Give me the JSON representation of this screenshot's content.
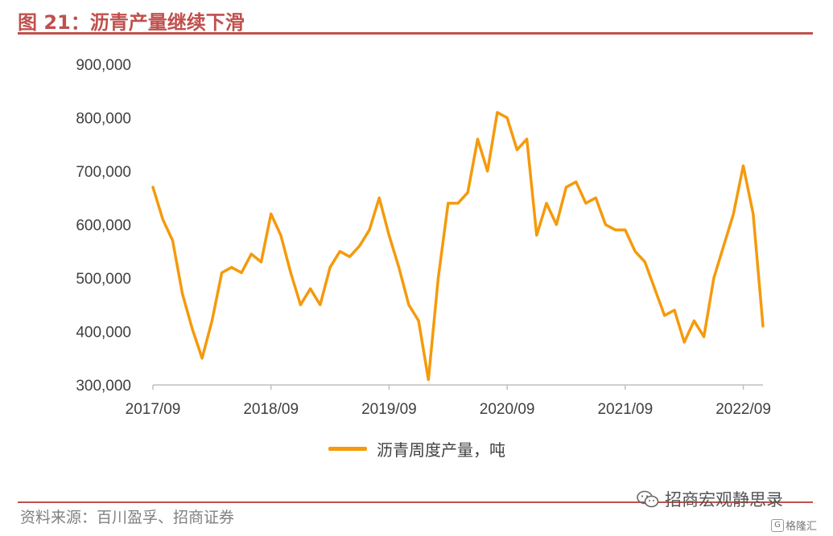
{
  "title": "图 21：沥青产量继续下滑",
  "source": "资料来源：百川盈孚、招商证券",
  "watermark": "招商宏观静思录",
  "corner_logo": "格隆汇",
  "colors": {
    "accent": "#c0504d",
    "series": "#f59a0c",
    "axis": "#bfbfbf",
    "text": "#404040"
  },
  "chart_data": {
    "type": "line",
    "title": "",
    "xlabel": "",
    "ylabel": "",
    "ylim": [
      300000,
      900000
    ],
    "yticks": [
      300000,
      400000,
      500000,
      600000,
      700000,
      800000,
      900000
    ],
    "ytick_labels": [
      "300,000",
      "400,000",
      "500,000",
      "600,000",
      "700,000",
      "800,000",
      "900,000"
    ],
    "xticks": [
      "2017/09",
      "2018/09",
      "2019/09",
      "2020/09",
      "2021/09",
      "2022/09"
    ],
    "xlim": [
      "2017/09",
      "2022/11"
    ],
    "grid": false,
    "legend": "bottom",
    "series": [
      {
        "name": "沥青周度产量，吨",
        "x": [
          "2017/09",
          "2017/10",
          "2017/11",
          "2017/12",
          "2018/01",
          "2018/02",
          "2018/03",
          "2018/04",
          "2018/05",
          "2018/06",
          "2018/07",
          "2018/08",
          "2018/09",
          "2018/10",
          "2018/11",
          "2018/12",
          "2019/01",
          "2019/02",
          "2019/03",
          "2019/04",
          "2019/05",
          "2019/06",
          "2019/07",
          "2019/08",
          "2019/09",
          "2019/10",
          "2019/11",
          "2019/12",
          "2020/01",
          "2020/02",
          "2020/03",
          "2020/04",
          "2020/05",
          "2020/06",
          "2020/07",
          "2020/08",
          "2020/09",
          "2020/10",
          "2020/11",
          "2020/12",
          "2021/01",
          "2021/02",
          "2021/03",
          "2021/04",
          "2021/05",
          "2021/06",
          "2021/07",
          "2021/08",
          "2021/09",
          "2021/10",
          "2021/11",
          "2021/12",
          "2022/01",
          "2022/02",
          "2022/03",
          "2022/04",
          "2022/05",
          "2022/06",
          "2022/07",
          "2022/08",
          "2022/09",
          "2022/10",
          "2022/11"
        ],
        "values": [
          670000,
          610000,
          570000,
          470000,
          405000,
          350000,
          420000,
          510000,
          520000,
          510000,
          545000,
          530000,
          620000,
          580000,
          510000,
          450000,
          480000,
          450000,
          520000,
          550000,
          540000,
          560000,
          590000,
          650000,
          580000,
          520000,
          450000,
          420000,
          310000,
          500000,
          640000,
          640000,
          660000,
          760000,
          700000,
          810000,
          800000,
          740000,
          760000,
          580000,
          640000,
          600000,
          670000,
          680000,
          640000,
          650000,
          600000,
          590000,
          590000,
          550000,
          530000,
          480000,
          430000,
          440000,
          380000,
          420000,
          390000,
          500000,
          560000,
          620000,
          710000,
          620000,
          410000
        ]
      }
    ]
  }
}
